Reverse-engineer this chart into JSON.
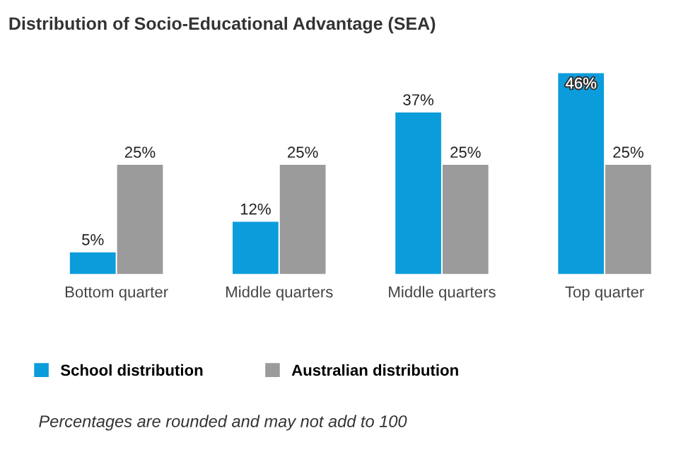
{
  "chart_data": {
    "type": "bar",
    "title": "Distribution of Socio-Educational Advantage (SEA)",
    "categories": [
      "Bottom quarter",
      "Middle quarters",
      "Middle quarters",
      "Top quarter"
    ],
    "series": [
      {
        "name": "School distribution",
        "color": "#0b9cdb",
        "values": [
          5,
          12,
          37,
          46
        ],
        "value_labels": [
          "5%",
          "12%",
          "37%",
          "46%"
        ]
      },
      {
        "name": "Australian distribution",
        "color": "#9b9b9b",
        "values": [
          25,
          25,
          25,
          25
        ],
        "value_labels": [
          "25%",
          "25%",
          "25%",
          "25%"
        ]
      }
    ],
    "legend": "bottom",
    "grid": false,
    "annotations": [
      "Percentages are rounded and may not add to 100"
    ]
  }
}
